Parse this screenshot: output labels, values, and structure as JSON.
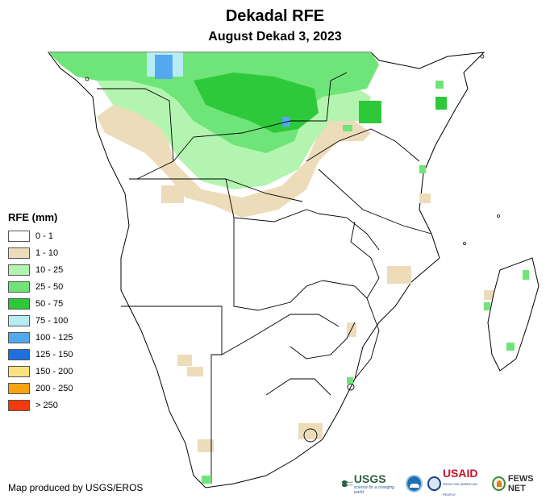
{
  "header": {
    "title": "Dekadal RFE",
    "subtitle": "August Dekad 3, 2023"
  },
  "legend": {
    "title": "RFE (mm)",
    "items": [
      {
        "label": "0 - 1",
        "color": "#ffffff"
      },
      {
        "label": "1 - 10",
        "color": "#eddcba"
      },
      {
        "label": "10 - 25",
        "color": "#b3f5b0"
      },
      {
        "label": "25 - 50",
        "color": "#6fe479"
      },
      {
        "label": "50 - 75",
        "color": "#2ec93a"
      },
      {
        "label": "75 - 100",
        "color": "#b7ecf5"
      },
      {
        "label": "100 - 125",
        "color": "#54a8ee"
      },
      {
        "label": "125 - 150",
        "color": "#1e6fe0"
      },
      {
        "label": "150 - 200",
        "color": "#fbe281"
      },
      {
        "label": "200 - 250",
        "color": "#f7a413"
      },
      {
        "label": "> 250",
        "color": "#f43a0c"
      }
    ]
  },
  "footer": {
    "credit": "Map produced by USGS/EROS"
  },
  "logos": {
    "usgs": "USGS",
    "usgs_tagline": "science for a changing world",
    "noaa": "NOAA",
    "usaid": "USAID",
    "usaid_tagline": "FROM THE AMERICAN PEOPLE",
    "fews": "FEWS NET"
  }
}
